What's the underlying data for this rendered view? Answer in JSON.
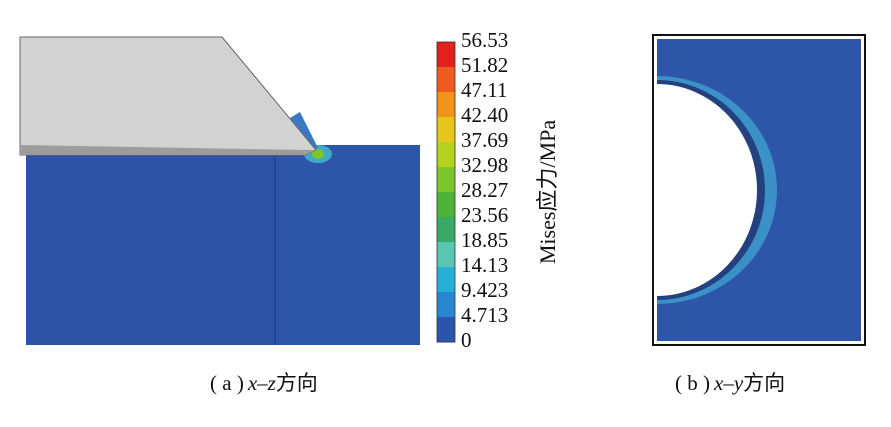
{
  "legend": {
    "title": "Mises应力/MPa",
    "labels": [
      "56.53",
      "51.82",
      "47.11",
      "42.40",
      "37.69",
      "32.98",
      "28.27",
      "23.56",
      "18.85",
      "14.13",
      "9.423",
      "4.713",
      "0"
    ],
    "colors": [
      "#e3211c",
      "#ee5b1e",
      "#f2941c",
      "#e6c51d",
      "#b5d21f",
      "#7cc52a",
      "#4cb334",
      "#3aa965",
      "#5ac5b0",
      "#27afd8",
      "#2a86cf",
      "#2b55ad"
    ]
  },
  "captions": [
    {
      "prefix": "( a )",
      "variable": "x–z",
      "suffix": "方向"
    },
    {
      "prefix": "( b )",
      "variable": "x–y",
      "suffix": "方向"
    }
  ]
}
